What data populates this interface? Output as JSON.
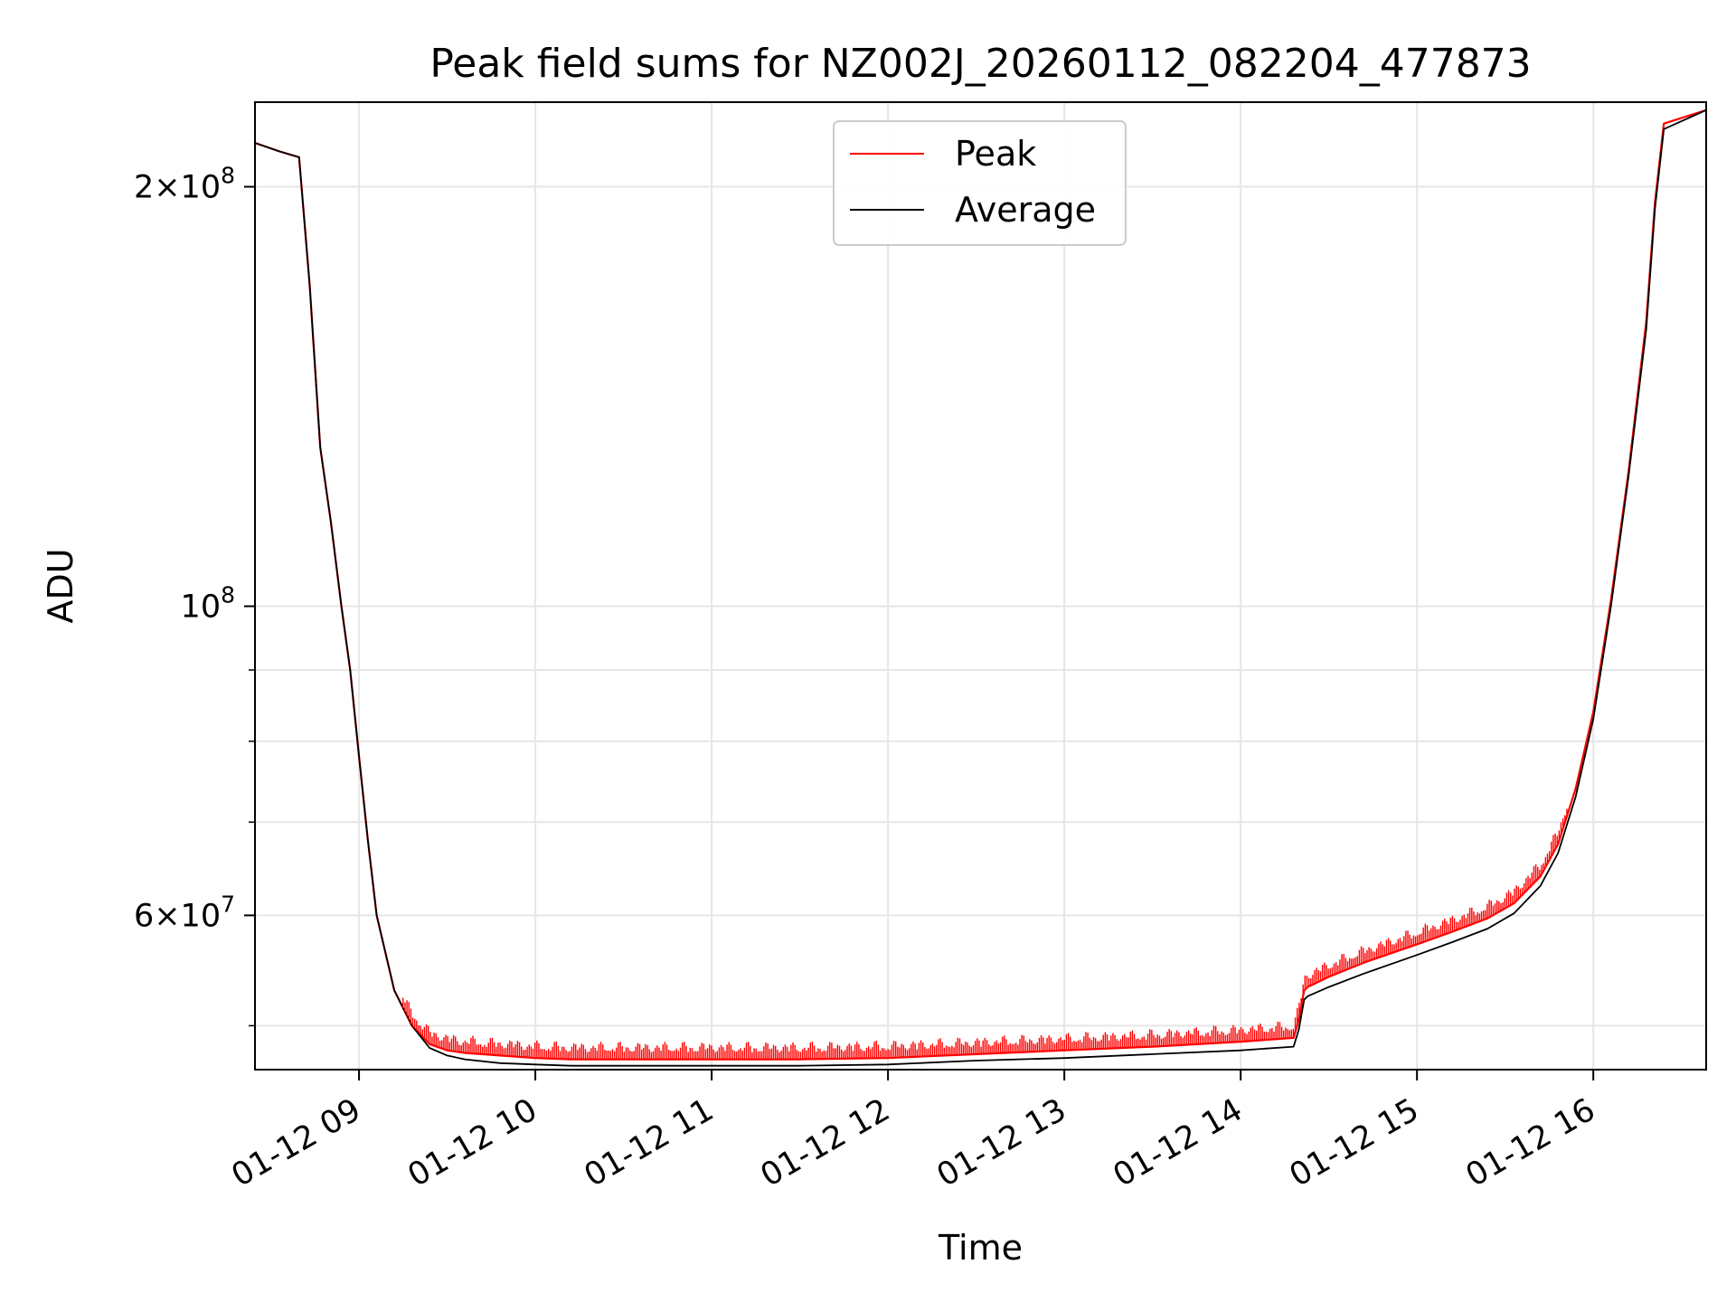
{
  "chart_data": {
    "type": "line",
    "title": "Peak field sums for NZ002J_20260112_082204_477873",
    "xlabel": "Time",
    "ylabel": "ADU",
    "y_scale": "log",
    "ylim": [
      46500000,
      230000000
    ],
    "x_unit": "hours on 2026-01-12",
    "xlim": [
      8.41,
      16.64
    ],
    "x_ticks": [
      {
        "value": 9,
        "label": "01-12 09"
      },
      {
        "value": 10,
        "label": "01-12 10"
      },
      {
        "value": 11,
        "label": "01-12 11"
      },
      {
        "value": 12,
        "label": "01-12 12"
      },
      {
        "value": 13,
        "label": "01-12 13"
      },
      {
        "value": 14,
        "label": "01-12 14"
      },
      {
        "value": 15,
        "label": "01-12 15"
      },
      {
        "value": 16,
        "label": "01-12 16"
      }
    ],
    "y_major_ticks": [
      {
        "value": 200000000,
        "mantissa": "2×10",
        "exp": "8"
      },
      {
        "value": 100000000,
        "mantissa": "10",
        "exp": "8"
      },
      {
        "value": 60000000,
        "mantissa": "6×10",
        "exp": "7"
      }
    ],
    "y_minor_ticks": [
      50000000,
      70000000,
      80000000,
      90000000
    ],
    "grid": true,
    "legend_position": "upper center",
    "series": [
      {
        "name": "Peak",
        "color": "#ff0000",
        "x": [
          8.41,
          8.55,
          8.66,
          8.72,
          8.78,
          8.84,
          8.9,
          8.95,
          9.0,
          9.05,
          9.1,
          9.2,
          9.3,
          9.4,
          9.5,
          9.6,
          9.8,
          10.0,
          10.2,
          10.5,
          11.0,
          11.5,
          12.0,
          12.5,
          13.0,
          13.5,
          14.0,
          14.3,
          14.33,
          14.36,
          14.38,
          14.5,
          14.7,
          15.0,
          15.2,
          15.4,
          15.55,
          15.7,
          15.8,
          15.9,
          16.0,
          16.1,
          16.2,
          16.3,
          16.35,
          16.4,
          16.64
        ],
        "y": [
          215000000,
          212000000,
          210000000,
          170000000,
          130000000,
          115000000,
          100000000,
          90000000,
          78000000,
          68000000,
          60000000,
          53000000,
          50000000,
          48500000,
          48000000,
          47800000,
          47600000,
          47400000,
          47300000,
          47300000,
          47300000,
          47300000,
          47400000,
          47700000,
          48000000,
          48300000,
          48700000,
          49000000,
          50500000,
          53000000,
          53300000,
          54200000,
          55500000,
          57200000,
          58400000,
          59700000,
          61200000,
          64000000,
          67500000,
          74000000,
          84000000,
          101000000,
          125000000,
          160000000,
          195000000,
          222000000,
          227000000
        ]
      },
      {
        "name": "Average",
        "color": "#000000",
        "x": [
          8.41,
          8.55,
          8.66,
          8.72,
          8.78,
          8.84,
          8.9,
          8.95,
          9.0,
          9.05,
          9.1,
          9.2,
          9.3,
          9.4,
          9.5,
          9.6,
          9.8,
          10.0,
          10.2,
          10.5,
          11.0,
          11.5,
          12.0,
          12.5,
          13.0,
          13.5,
          14.0,
          14.3,
          14.33,
          14.36,
          14.38,
          14.5,
          14.7,
          15.0,
          15.2,
          15.4,
          15.55,
          15.7,
          15.8,
          15.9,
          16.0,
          16.1,
          16.2,
          16.3,
          16.35,
          16.4,
          16.64
        ],
        "y": [
          215000000,
          212000000,
          210000000,
          170000000,
          130000000,
          115000000,
          100000000,
          90000000,
          78000000,
          68000000,
          60000000,
          53000000,
          50000000,
          48200000,
          47600000,
          47300000,
          47000000,
          46900000,
          46800000,
          46800000,
          46800000,
          46800000,
          46900000,
          47200000,
          47400000,
          47700000,
          48000000,
          48300000,
          49700000,
          52200000,
          52500000,
          53300000,
          54500000,
          56200000,
          57400000,
          58700000,
          60200000,
          63000000,
          66500000,
          73000000,
          83000000,
          100000000,
          124000000,
          158000000,
          193000000,
          220000000,
          227000000
        ]
      }
    ]
  }
}
